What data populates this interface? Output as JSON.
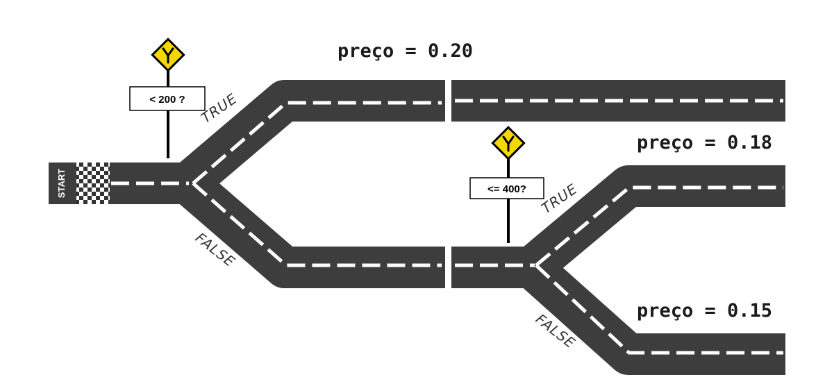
{
  "start_label": "START",
  "decision_1": {
    "condition": "< 200 ?",
    "true_label": "TRUE",
    "false_label": "FALSE",
    "sign_icon": "fork-road-sign-icon",
    "sign_color": "#f5d800"
  },
  "decision_2": {
    "condition": "<= 400?",
    "true_label": "TRUE",
    "false_label": "FALSE",
    "sign_icon": "fork-road-sign-icon",
    "sign_color": "#f5d800"
  },
  "outcomes": {
    "top": "preço = 0.20",
    "middle": "preço = 0.18",
    "bottom": "preço = 0.15"
  },
  "colors": {
    "road": "#3d3d3d",
    "lane_marking": "#ffffff"
  }
}
